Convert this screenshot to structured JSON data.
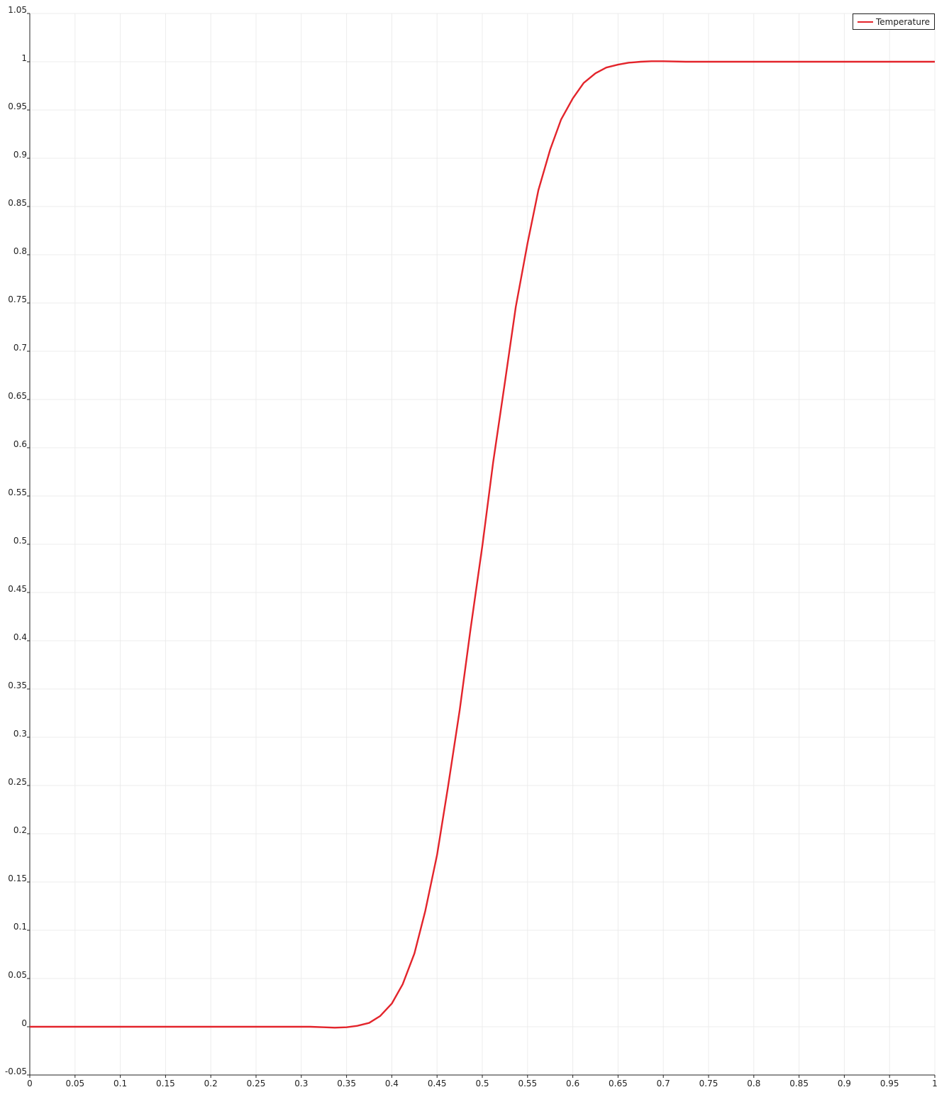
{
  "chart_data": {
    "type": "line",
    "title": "",
    "xlabel": "",
    "ylabel": "",
    "xlim": [
      0,
      1
    ],
    "ylim": [
      -0.05,
      1.05
    ],
    "grid": true,
    "legend_position": "top-right",
    "x_ticks": [
      "0",
      "0.05",
      "0.1",
      "0.15",
      "0.2",
      "0.25",
      "0.3",
      "0.35",
      "0.4",
      "0.45",
      "0.5",
      "0.55",
      "0.6",
      "0.65",
      "0.7",
      "0.75",
      "0.8",
      "0.85",
      "0.9",
      "0.95",
      "1"
    ],
    "y_ticks": [
      "-0.05",
      "0",
      "0.05",
      "0.1",
      "0.15",
      "0.2",
      "0.25",
      "0.3",
      "0.35",
      "0.4",
      "0.45",
      "0.5",
      "0.55",
      "0.6",
      "0.65",
      "0.7",
      "0.75",
      "0.8",
      "0.85",
      "0.9",
      "0.95",
      "1",
      "1.05"
    ],
    "series": [
      {
        "name": "Temperature",
        "color": "#e3242b",
        "x": [
          0,
          0.05,
          0.1,
          0.15,
          0.2,
          0.25,
          0.3,
          0.31,
          0.325,
          0.337,
          0.35,
          0.362,
          0.375,
          0.387,
          0.4,
          0.412,
          0.425,
          0.437,
          0.45,
          0.462,
          0.475,
          0.487,
          0.5,
          0.512,
          0.525,
          0.537,
          0.55,
          0.562,
          0.575,
          0.587,
          0.6,
          0.612,
          0.625,
          0.637,
          0.65,
          0.662,
          0.675,
          0.687,
          0.7,
          0.725,
          0.75,
          0.8,
          0.85,
          0.9,
          0.95,
          1
        ],
        "values": [
          0,
          0,
          0,
          0,
          0,
          0,
          0,
          0,
          -0.0005,
          -0.001,
          -0.0005,
          0.001,
          0.004,
          0.011,
          0.024,
          0.044,
          0.076,
          0.12,
          0.178,
          0.248,
          0.328,
          0.412,
          0.498,
          0.585,
          0.668,
          0.746,
          0.812,
          0.867,
          0.909,
          0.94,
          0.962,
          0.978,
          0.988,
          0.994,
          0.997,
          0.999,
          1.0,
          1.0005,
          1.0005,
          1.0,
          1.0,
          1.0,
          1.0,
          1.0,
          1.0,
          1.0
        ]
      }
    ]
  }
}
